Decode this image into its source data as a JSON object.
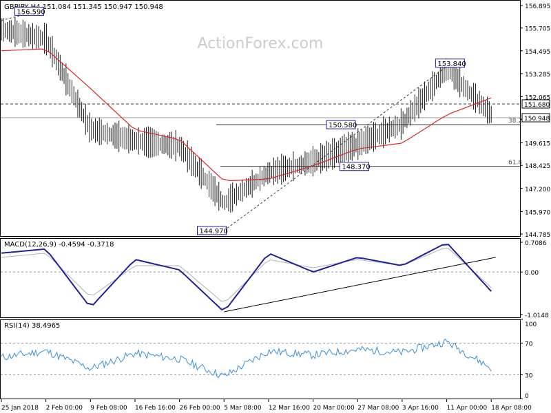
{
  "chart_data": [
    {
      "type": "candlestick",
      "title": "GBPJPY,H4  151.084 151.345 150.947 150.948",
      "watermark": "ActionForex.com",
      "ylim": [
        144.785,
        156.895
      ],
      "y_ticks": [
        "156.895",
        "155.705",
        "154.495",
        "153.285",
        "152.065",
        "150.855",
        "149.615",
        "148.425",
        "147.200",
        "145.970",
        "144.785"
      ],
      "series": [
        {
          "name": "price",
          "x": [
            "25 Jan 2018",
            "2 Feb 00:00",
            "9 Feb 08:00",
            "16 Feb 16:00",
            "26 Feb 00:00",
            "5 Mar 08:00",
            "12 Mar 16:00",
            "20 Mar 00:00",
            "27 Mar 08:00",
            "3 Apr 16:00",
            "11 Apr 00:00",
            "18 Apr 08:00"
          ],
          "values": [
            155.6,
            155.1,
            150.3,
            149.7,
            149.4,
            146.4,
            148.0,
            148.6,
            149.5,
            150.6,
            153.5,
            151.1
          ]
        },
        {
          "name": "",
          "x": [
            "25 Jan 2018",
            "2 Feb 00:00",
            "9 Feb 08:00",
            "16 Feb 16:00",
            "26 Feb 00:00",
            "5 Mar 08:00",
            "12 Mar 16:00",
            "20 Mar 00:00",
            "27 Mar 08:00",
            "3 Apr 16:00",
            "11 Apr 00:00",
            "18 Apr 08:00"
          ],
          "values": [
            154.5,
            154.6,
            152.5,
            150.3,
            149.8,
            147.6,
            147.7,
            148.4,
            149.3,
            149.6,
            151.1,
            152.0
          ]
        }
      ],
      "price_labels": [
        {
          "text": "156.590",
          "value": 156.59
        },
        {
          "text": "144.970",
          "value": 144.97
        },
        {
          "text": "150.580",
          "value": 150.58
        },
        {
          "text": "148.370",
          "value": 148.37
        },
        {
          "text": "153.840",
          "value": 153.84
        }
      ],
      "levels": [
        {
          "label": "38.2",
          "value": 150.58
        },
        {
          "label": "61.8",
          "value": 148.37
        }
      ],
      "reference_line": {
        "text": "151.680",
        "value": 151.68
      },
      "current": {
        "text": "150.948",
        "value": 150.948
      }
    },
    {
      "type": "line",
      "title": "MACD(12,26,9) -0.4594 -0.3718",
      "ylim": [
        -1.0148,
        0.7086
      ],
      "y_ticks": [
        "0.7086",
        "0.00",
        "-1.0148"
      ],
      "series": [
        {
          "name": "",
          "x": [
            "25 Jan 2018",
            "2 Feb 00:00",
            "9 Feb 08:00",
            "16 Feb 16:00",
            "26 Feb 00:00",
            "5 Mar 08:00",
            "12 Mar 16:00",
            "20 Mar 00:00",
            "27 Mar 08:00",
            "3 Apr 16:00",
            "11 Apr 00:00",
            "18 Apr 08:00"
          ],
          "values": [
            0.45,
            0.55,
            -0.85,
            0.3,
            0.05,
            -0.95,
            0.45,
            0.0,
            0.35,
            0.15,
            0.7,
            -0.46
          ]
        },
        {
          "name": "",
          "x": [
            "25 Jan 2018",
            "2 Feb 00:00",
            "9 Feb 08:00",
            "16 Feb 16:00",
            "26 Feb 00:00",
            "5 Mar 08:00",
            "12 Mar 16:00",
            "20 Mar 00:00",
            "27 Mar 08:00",
            "3 Apr 16:00",
            "11 Apr 00:00",
            "18 Apr 08:00"
          ],
          "values": [
            0.35,
            0.45,
            -0.6,
            0.15,
            0.15,
            -0.75,
            0.3,
            0.1,
            0.3,
            0.15,
            0.6,
            -0.37
          ]
        }
      ]
    },
    {
      "type": "line",
      "title": "RSI(14) 38.4965",
      "ylim": [
        0,
        100
      ],
      "y_ticks": [
        "100",
        "70",
        "30",
        "0"
      ],
      "series": [
        {
          "name": "",
          "x": [
            "25 Jan 2018",
            "2 Feb 00:00",
            "9 Feb 08:00",
            "16 Feb 16:00",
            "26 Feb 00:00",
            "5 Mar 08:00",
            "12 Mar 16:00",
            "20 Mar 00:00",
            "27 Mar 08:00",
            "3 Apr 16:00",
            "11 Apr 00:00",
            "18 Apr 08:00"
          ],
          "values": [
            52,
            60,
            38,
            57,
            50,
            28,
            60,
            55,
            62,
            58,
            72,
            38.5
          ]
        }
      ]
    }
  ],
  "x_labels": [
    "25 Jan 2018",
    "2 Feb 00:00",
    "9 Feb 08:00",
    "16 Feb 16:00",
    "26 Feb 00:00",
    "5 Mar 08:00",
    "12 Mar 16:00",
    "20 Mar 00:00",
    "27 Mar 08:00",
    "3 Apr 16:00",
    "11 Apr 00:00",
    "18 Apr 08:00"
  ],
  "colors": {
    "price": "#1a1a1a",
    "ma": "#dd2222",
    "macd": "#1f1fa0",
    "signal": "#b0b0b0",
    "rsi": "#3a8fd8",
    "label_border": "#1a1aa0",
    "grid": "#999999",
    "watermark": "#cccccc"
  }
}
